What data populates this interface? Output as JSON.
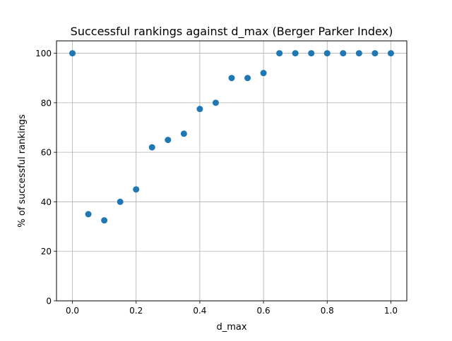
{
  "chart_data": {
    "type": "scatter",
    "title": "Successful rankings against d_max (Berger Parker Index)",
    "xlabel": "d_max",
    "ylabel": "% of successful rankings",
    "xlim": [
      -0.05,
      1.05
    ],
    "ylim": [
      0,
      105
    ],
    "x_ticks": [
      0.0,
      0.2,
      0.4,
      0.6,
      0.8,
      1.0
    ],
    "x_tick_labels": [
      "0.0",
      "0.2",
      "0.4",
      "0.6",
      "0.8",
      "1.0"
    ],
    "y_ticks": [
      0,
      20,
      40,
      60,
      80,
      100
    ],
    "y_tick_labels": [
      "0",
      "20",
      "40",
      "60",
      "80",
      "100"
    ],
    "grid": true,
    "marker_color": "#1f77b4",
    "points": [
      {
        "x": 0.0,
        "y": 100
      },
      {
        "x": 0.05,
        "y": 35
      },
      {
        "x": 0.1,
        "y": 32.5
      },
      {
        "x": 0.15,
        "y": 40
      },
      {
        "x": 0.2,
        "y": 45
      },
      {
        "x": 0.25,
        "y": 62
      },
      {
        "x": 0.3,
        "y": 65
      },
      {
        "x": 0.35,
        "y": 67.5
      },
      {
        "x": 0.4,
        "y": 77.5
      },
      {
        "x": 0.45,
        "y": 80
      },
      {
        "x": 0.5,
        "y": 90
      },
      {
        "x": 0.55,
        "y": 90
      },
      {
        "x": 0.6,
        "y": 92
      },
      {
        "x": 0.65,
        "y": 100
      },
      {
        "x": 0.7,
        "y": 100
      },
      {
        "x": 0.75,
        "y": 100
      },
      {
        "x": 0.8,
        "y": 100
      },
      {
        "x": 0.85,
        "y": 100
      },
      {
        "x": 0.9,
        "y": 100
      },
      {
        "x": 0.95,
        "y": 100
      },
      {
        "x": 1.0,
        "y": 100
      }
    ]
  }
}
